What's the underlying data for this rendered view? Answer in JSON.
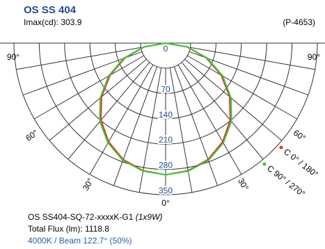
{
  "header": {
    "title": "OS SS 404",
    "imax": "Imax(cd): 303.9",
    "code": "(P-4653)"
  },
  "chart_data": {
    "type": "polar",
    "radial_ticks": [
      "0",
      "70",
      "140",
      "210",
      "280",
      "350"
    ],
    "radial_values": [
      0,
      70,
      140,
      210,
      280,
      350
    ],
    "angle_labels": [
      "90°",
      "90°",
      "60°",
      "60°",
      "30°",
      "30°",
      "0°"
    ],
    "series": [
      {
        "name": "C 0° / 180°",
        "color": "#e8332a",
        "angles": [
          0,
          10,
          20,
          30,
          40,
          50,
          60,
          70,
          80,
          90
        ],
        "values": [
          303.9,
          299,
          286,
          263,
          232,
          193,
          148,
          100,
          50,
          0
        ]
      },
      {
        "name": "C 90° / 270°",
        "color": "#33cc33",
        "angles": [
          0,
          10,
          20,
          30,
          40,
          50,
          60,
          70,
          80,
          90
        ],
        "values": [
          303.9,
          300,
          288,
          266,
          236,
          197,
          152,
          103,
          52,
          0
        ]
      }
    ]
  },
  "info": {
    "model": "OS SS404-SQ-72-xxxxK-G1",
    "model_suffix": "(1x9W)",
    "flux": "Total Flux (lm): 1118.8",
    "beam": "4000K / Beam 122.7° (50%)"
  }
}
